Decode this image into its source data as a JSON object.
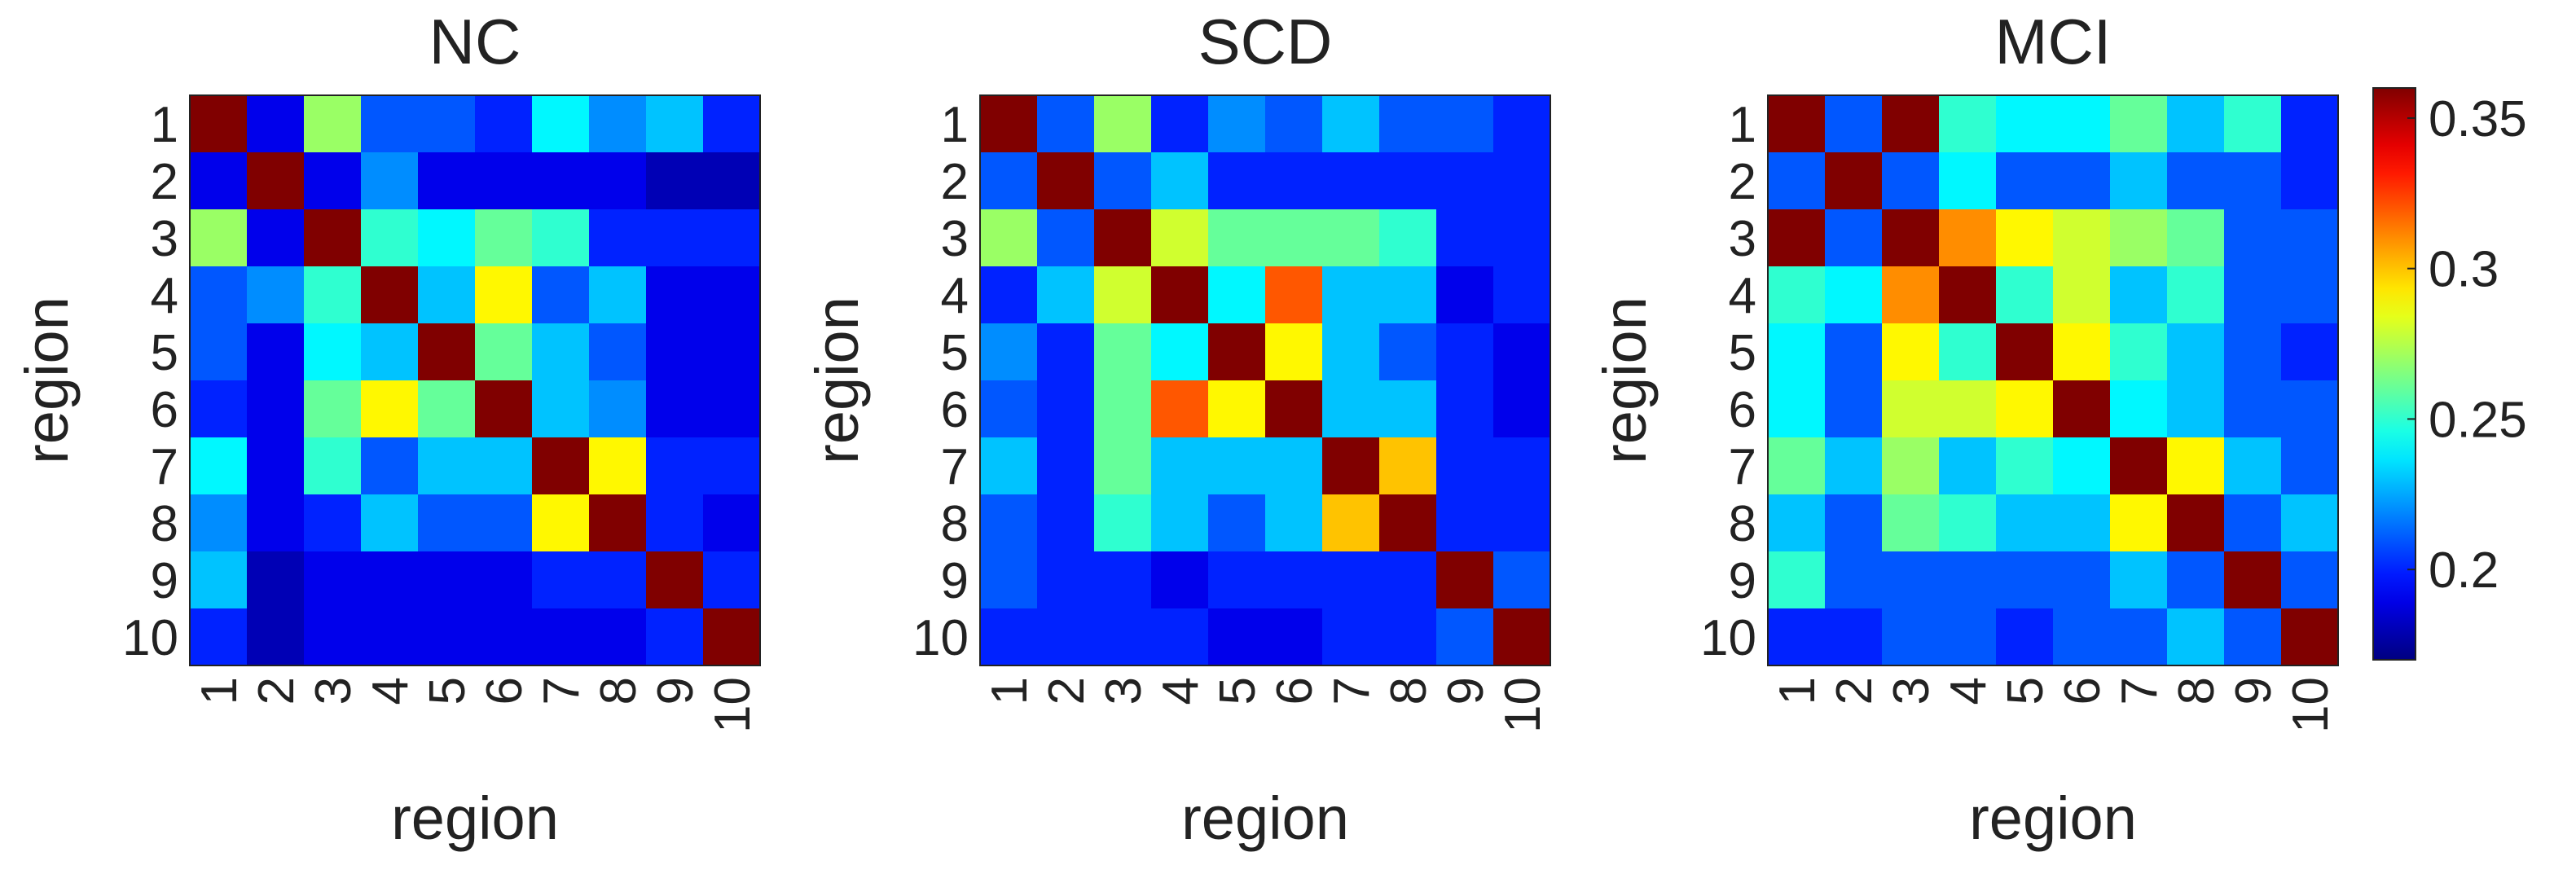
{
  "figure": {
    "description_panels": [
      "NC",
      "SCD",
      "MCI"
    ]
  },
  "colorbar": {
    "min": 0.17,
    "max": 0.36,
    "ticks": [
      0.2,
      0.25,
      0.3,
      0.35
    ],
    "tick_labels": [
      "0.2",
      "0.25",
      "0.3",
      "0.35"
    ],
    "colormap": "jet"
  },
  "chart_data": [
    {
      "type": "heatmap",
      "title": "NC",
      "xlabel": "region",
      "ylabel": "region",
      "x_categories": [
        "1",
        "2",
        "3",
        "4",
        "5",
        "6",
        "7",
        "8",
        "9",
        "10"
      ],
      "y_categories": [
        "1",
        "2",
        "3",
        "4",
        "5",
        "6",
        "7",
        "8",
        "9",
        "10"
      ],
      "values": [
        [
          0.36,
          0.19,
          0.27,
          0.21,
          0.21,
          0.2,
          0.24,
          0.22,
          0.23,
          0.2
        ],
        [
          0.19,
          0.36,
          0.19,
          0.22,
          0.19,
          0.19,
          0.19,
          0.19,
          0.18,
          0.18
        ],
        [
          0.27,
          0.19,
          0.36,
          0.25,
          0.24,
          0.26,
          0.25,
          0.2,
          0.2,
          0.2
        ],
        [
          0.21,
          0.22,
          0.25,
          0.36,
          0.23,
          0.29,
          0.21,
          0.23,
          0.19,
          0.19
        ],
        [
          0.21,
          0.19,
          0.24,
          0.23,
          0.36,
          0.26,
          0.23,
          0.21,
          0.19,
          0.19
        ],
        [
          0.2,
          0.19,
          0.26,
          0.29,
          0.26,
          0.36,
          0.23,
          0.22,
          0.19,
          0.19
        ],
        [
          0.24,
          0.19,
          0.25,
          0.21,
          0.23,
          0.23,
          0.36,
          0.29,
          0.2,
          0.2
        ],
        [
          0.22,
          0.19,
          0.2,
          0.23,
          0.21,
          0.21,
          0.29,
          0.36,
          0.2,
          0.19
        ],
        [
          0.23,
          0.18,
          0.19,
          0.19,
          0.19,
          0.19,
          0.2,
          0.2,
          0.36,
          0.2
        ],
        [
          0.2,
          0.18,
          0.19,
          0.19,
          0.19,
          0.19,
          0.19,
          0.19,
          0.2,
          0.36
        ]
      ]
    },
    {
      "type": "heatmap",
      "title": "SCD",
      "xlabel": "region",
      "ylabel": "region",
      "x_categories": [
        "1",
        "2",
        "3",
        "4",
        "5",
        "6",
        "7",
        "8",
        "9",
        "10"
      ],
      "y_categories": [
        "1",
        "2",
        "3",
        "4",
        "5",
        "6",
        "7",
        "8",
        "9",
        "10"
      ],
      "values": [
        [
          0.36,
          0.21,
          0.27,
          0.2,
          0.22,
          0.21,
          0.23,
          0.21,
          0.21,
          0.2
        ],
        [
          0.21,
          0.36,
          0.21,
          0.23,
          0.2,
          0.2,
          0.2,
          0.2,
          0.2,
          0.2
        ],
        [
          0.27,
          0.21,
          0.36,
          0.28,
          0.26,
          0.26,
          0.26,
          0.25,
          0.2,
          0.2
        ],
        [
          0.2,
          0.23,
          0.28,
          0.36,
          0.24,
          0.32,
          0.23,
          0.23,
          0.19,
          0.2
        ],
        [
          0.22,
          0.2,
          0.26,
          0.24,
          0.36,
          0.29,
          0.23,
          0.21,
          0.2,
          0.19
        ],
        [
          0.21,
          0.2,
          0.26,
          0.32,
          0.29,
          0.36,
          0.23,
          0.23,
          0.2,
          0.19
        ],
        [
          0.23,
          0.2,
          0.26,
          0.23,
          0.23,
          0.23,
          0.36,
          0.3,
          0.2,
          0.2
        ],
        [
          0.21,
          0.2,
          0.25,
          0.23,
          0.21,
          0.23,
          0.3,
          0.36,
          0.2,
          0.2
        ],
        [
          0.21,
          0.2,
          0.2,
          0.19,
          0.2,
          0.2,
          0.2,
          0.2,
          0.36,
          0.21
        ],
        [
          0.2,
          0.2,
          0.2,
          0.2,
          0.19,
          0.19,
          0.2,
          0.2,
          0.21,
          0.36
        ]
      ]
    },
    {
      "type": "heatmap",
      "title": "MCI",
      "xlabel": "region",
      "ylabel": "region",
      "x_categories": [
        "1",
        "2",
        "3",
        "4",
        "5",
        "6",
        "7",
        "8",
        "9",
        "10"
      ],
      "y_categories": [
        "1",
        "2",
        "3",
        "4",
        "5",
        "6",
        "7",
        "8",
        "9",
        "10"
      ],
      "values": [
        [
          0.36,
          0.21,
          0.36,
          0.25,
          0.24,
          0.24,
          0.26,
          0.23,
          0.25,
          0.2
        ],
        [
          0.21,
          0.36,
          0.21,
          0.24,
          0.21,
          0.21,
          0.23,
          0.21,
          0.21,
          0.2
        ],
        [
          0.36,
          0.21,
          0.36,
          0.31,
          0.29,
          0.28,
          0.27,
          0.26,
          0.21,
          0.21
        ],
        [
          0.25,
          0.24,
          0.31,
          0.36,
          0.25,
          0.28,
          0.23,
          0.25,
          0.21,
          0.21
        ],
        [
          0.24,
          0.21,
          0.29,
          0.25,
          0.36,
          0.29,
          0.25,
          0.23,
          0.21,
          0.2
        ],
        [
          0.24,
          0.21,
          0.28,
          0.28,
          0.29,
          0.36,
          0.24,
          0.23,
          0.21,
          0.21
        ],
        [
          0.26,
          0.23,
          0.27,
          0.23,
          0.25,
          0.24,
          0.36,
          0.29,
          0.23,
          0.21
        ],
        [
          0.23,
          0.21,
          0.26,
          0.25,
          0.23,
          0.23,
          0.29,
          0.36,
          0.21,
          0.23
        ],
        [
          0.25,
          0.21,
          0.21,
          0.21,
          0.21,
          0.21,
          0.23,
          0.21,
          0.36,
          0.21
        ],
        [
          0.2,
          0.2,
          0.21,
          0.21,
          0.2,
          0.21,
          0.21,
          0.23,
          0.21,
          0.36
        ]
      ]
    }
  ]
}
